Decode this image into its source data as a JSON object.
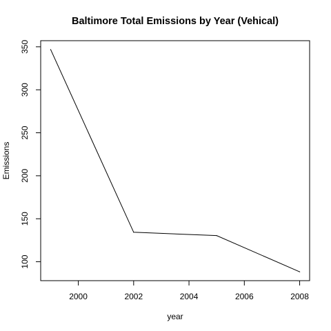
{
  "chart_data": {
    "type": "line",
    "title": "Baltimore Total Emissions by Year (Vehical)",
    "xlabel": "year",
    "ylabel": "Emissions",
    "x": [
      1999,
      2002,
      2005,
      2008
    ],
    "series": [
      {
        "values": [
          346.8,
          134.3,
          130.4,
          88.3
        ]
      }
    ],
    "xlim": [
      1998.64,
      2008.36
    ],
    "ylim": [
      78.0,
      357.1
    ],
    "xticks": [
      2000,
      2002,
      2004,
      2006,
      2008
    ],
    "xtick_labels": [
      "2000",
      "2002",
      "2004",
      "2006",
      "2008"
    ],
    "yticks": [
      100,
      150,
      200,
      250,
      300,
      350
    ],
    "ytick_labels": [
      "100",
      "150",
      "200",
      "250",
      "300",
      "350"
    ],
    "grid": false,
    "legend": "none",
    "line_color": "#000000"
  }
}
